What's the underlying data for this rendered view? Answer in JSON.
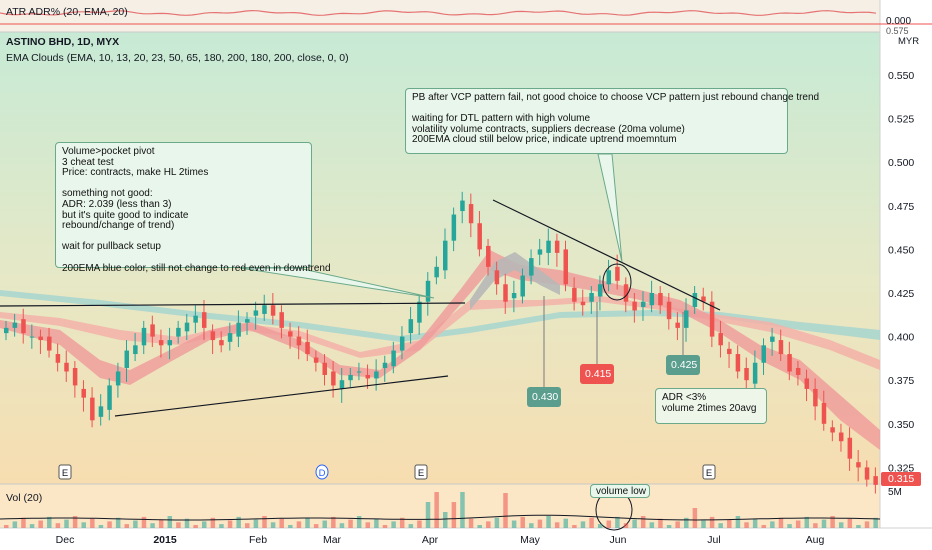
{
  "header": {
    "atr_label": "ATR ADR% (20, EMA, 20)",
    "atr_value": "0.000",
    "title": "ASTINO BHD, 1D, MYX",
    "ema_label": "EMA Clouds (EMA, 10, 13, 20, 23, 50, 65, 180, 200, 180, 200, close, 0, 0)",
    "currency": "MYR"
  },
  "volume_label": "Vol (20)",
  "volume_axis_label": "5M",
  "price_axis": {
    "ticks": [
      "0.550",
      "0.525",
      "0.500",
      "0.475",
      "0.450",
      "0.425",
      "0.400",
      "0.375",
      "0.350",
      "0.325"
    ],
    "top_tick": "0.575",
    "last_price": "0.315",
    "last_price_color": "#ef5350"
  },
  "time_axis": {
    "labels": [
      "Dec",
      "2015",
      "Feb",
      "Mar",
      "Apr",
      "May",
      "Jun",
      "Jul",
      "Aug"
    ]
  },
  "event_markers": [
    "E",
    "D",
    "E",
    "E"
  ],
  "annotations": {
    "left_note": "Volume>pocket pivot\n3 cheat test\nPrice: contracts, make HL 2times\n\nsomething not good:\nADR: 2.039 (less than 3)\nbut it's quite good to indicate\nrebound/change of trend)\n\nwait for pullback setup\n\n200EMA blue color, still not change to red even in downtrend",
    "top_note": "PB after VCP pattern fail, not good choice to choose VCP pattern just rebound change trend\n\nwaiting for DTL pattern with high volume\nvolatility volume contracts, suppliers decrease (20ma volume)\n200EMA cloud still below price, indicate uptrend moemntum",
    "adr_note": "ADR <3%\nvolume 2times 20avg",
    "volume_low": "volume low",
    "price_labels": [
      {
        "text": "0.430",
        "color": "#5b9e8e"
      },
      {
        "text": "0.415",
        "color": "#ef5350"
      },
      {
        "text": "0.425",
        "color": "#5b9e8e"
      }
    ]
  },
  "colors": {
    "up": "#26a69a",
    "down": "#ef5350",
    "ema_short_cloud": "#ef9a9a",
    "ema_mid_cloud": "#b7b7b7",
    "ema_long_cloud": "#9ed3d0",
    "ema_long_cloud_down": "#f3b2a8",
    "background_top": "#c7ead5",
    "background_bottom": "#f7ddb0",
    "trendline": "#131722",
    "atr_line": "#e57373"
  },
  "chart_data": {
    "type": "candlestick",
    "title": "ASTINO BHD, 1D, MYX",
    "ylabel": "MYR",
    "ylim": [
      0.315,
      0.575
    ],
    "months": [
      "Dec",
      "2015",
      "Feb",
      "Mar",
      "Apr",
      "May",
      "Jun",
      "Jul",
      "Aug"
    ],
    "last_price": 0.315,
    "series": [
      {
        "name": "price",
        "points": [
          {
            "t": "Nov-late",
            "close": 0.405
          },
          {
            "t": "Dec-early",
            "close": 0.405
          },
          {
            "t": "Dec-mid",
            "close": 0.395
          },
          {
            "t": "Dec-low",
            "close": 0.352
          },
          {
            "t": "2015-Jan",
            "close": 0.395
          },
          {
            "t": "Jan-mid",
            "close": 0.408
          },
          {
            "t": "Feb",
            "close": 0.418
          },
          {
            "t": "Feb-late",
            "close": 0.4
          },
          {
            "t": "Mar",
            "close": 0.372
          },
          {
            "t": "Mar-late",
            "close": 0.38
          },
          {
            "t": "Apr",
            "close": 0.42
          },
          {
            "t": "Apr-late",
            "close": 0.478
          },
          {
            "t": "May",
            "close": 0.42
          },
          {
            "t": "May-late",
            "close": 0.455
          },
          {
            "t": "Jun",
            "close": 0.42
          },
          {
            "t": "Jun-late",
            "close": 0.425
          },
          {
            "t": "Jul",
            "close": 0.38
          },
          {
            "t": "Jul-late",
            "close": 0.39
          },
          {
            "t": "Aug",
            "close": 0.35
          },
          {
            "t": "Aug-late",
            "close": 0.315
          }
        ]
      }
    ],
    "grid": false
  }
}
